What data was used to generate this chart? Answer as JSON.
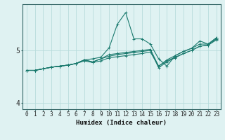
{
  "xlabel": "Humidex (Indice chaleur)",
  "background_color": "#dff2f2",
  "grid_color": "#b8dcdc",
  "line_color": "#1a7a6e",
  "x_values": [
    0,
    1,
    2,
    3,
    4,
    5,
    6,
    7,
    8,
    9,
    10,
    11,
    12,
    13,
    14,
    15,
    16,
    17,
    18,
    19,
    20,
    21,
    22,
    23
  ],
  "series1": [
    4.62,
    4.62,
    4.65,
    4.68,
    4.7,
    4.72,
    4.75,
    4.82,
    4.84,
    4.87,
    5.05,
    5.5,
    5.72,
    5.22,
    5.22,
    5.12,
    4.84,
    4.7,
    4.9,
    4.98,
    5.04,
    5.18,
    5.12,
    5.24
  ],
  "series2": [
    4.62,
    4.62,
    4.65,
    4.68,
    4.7,
    4.72,
    4.75,
    4.82,
    4.78,
    4.84,
    4.92,
    4.94,
    4.96,
    4.98,
    5.0,
    5.02,
    4.7,
    4.82,
    4.9,
    4.98,
    5.04,
    5.12,
    5.12,
    5.24
  ],
  "series3": [
    4.62,
    4.62,
    4.65,
    4.68,
    4.7,
    4.72,
    4.75,
    4.82,
    4.78,
    4.84,
    4.89,
    4.92,
    4.94,
    4.96,
    4.98,
    5.0,
    4.67,
    4.78,
    4.86,
    4.94,
    5.0,
    5.08,
    5.1,
    5.22
  ],
  "series4": [
    4.62,
    4.62,
    4.65,
    4.68,
    4.7,
    4.72,
    4.75,
    4.8,
    4.77,
    4.8,
    4.86,
    4.88,
    4.9,
    4.92,
    4.94,
    4.97,
    4.7,
    4.8,
    4.87,
    4.94,
    5.0,
    5.08,
    5.1,
    5.2
  ],
  "ylim": [
    3.88,
    5.88
  ],
  "yticks": [
    4,
    5
  ],
  "xlim": [
    -0.5,
    23.5
  ],
  "tick_fontsize": 5.5,
  "xlabel_fontsize": 6.5
}
